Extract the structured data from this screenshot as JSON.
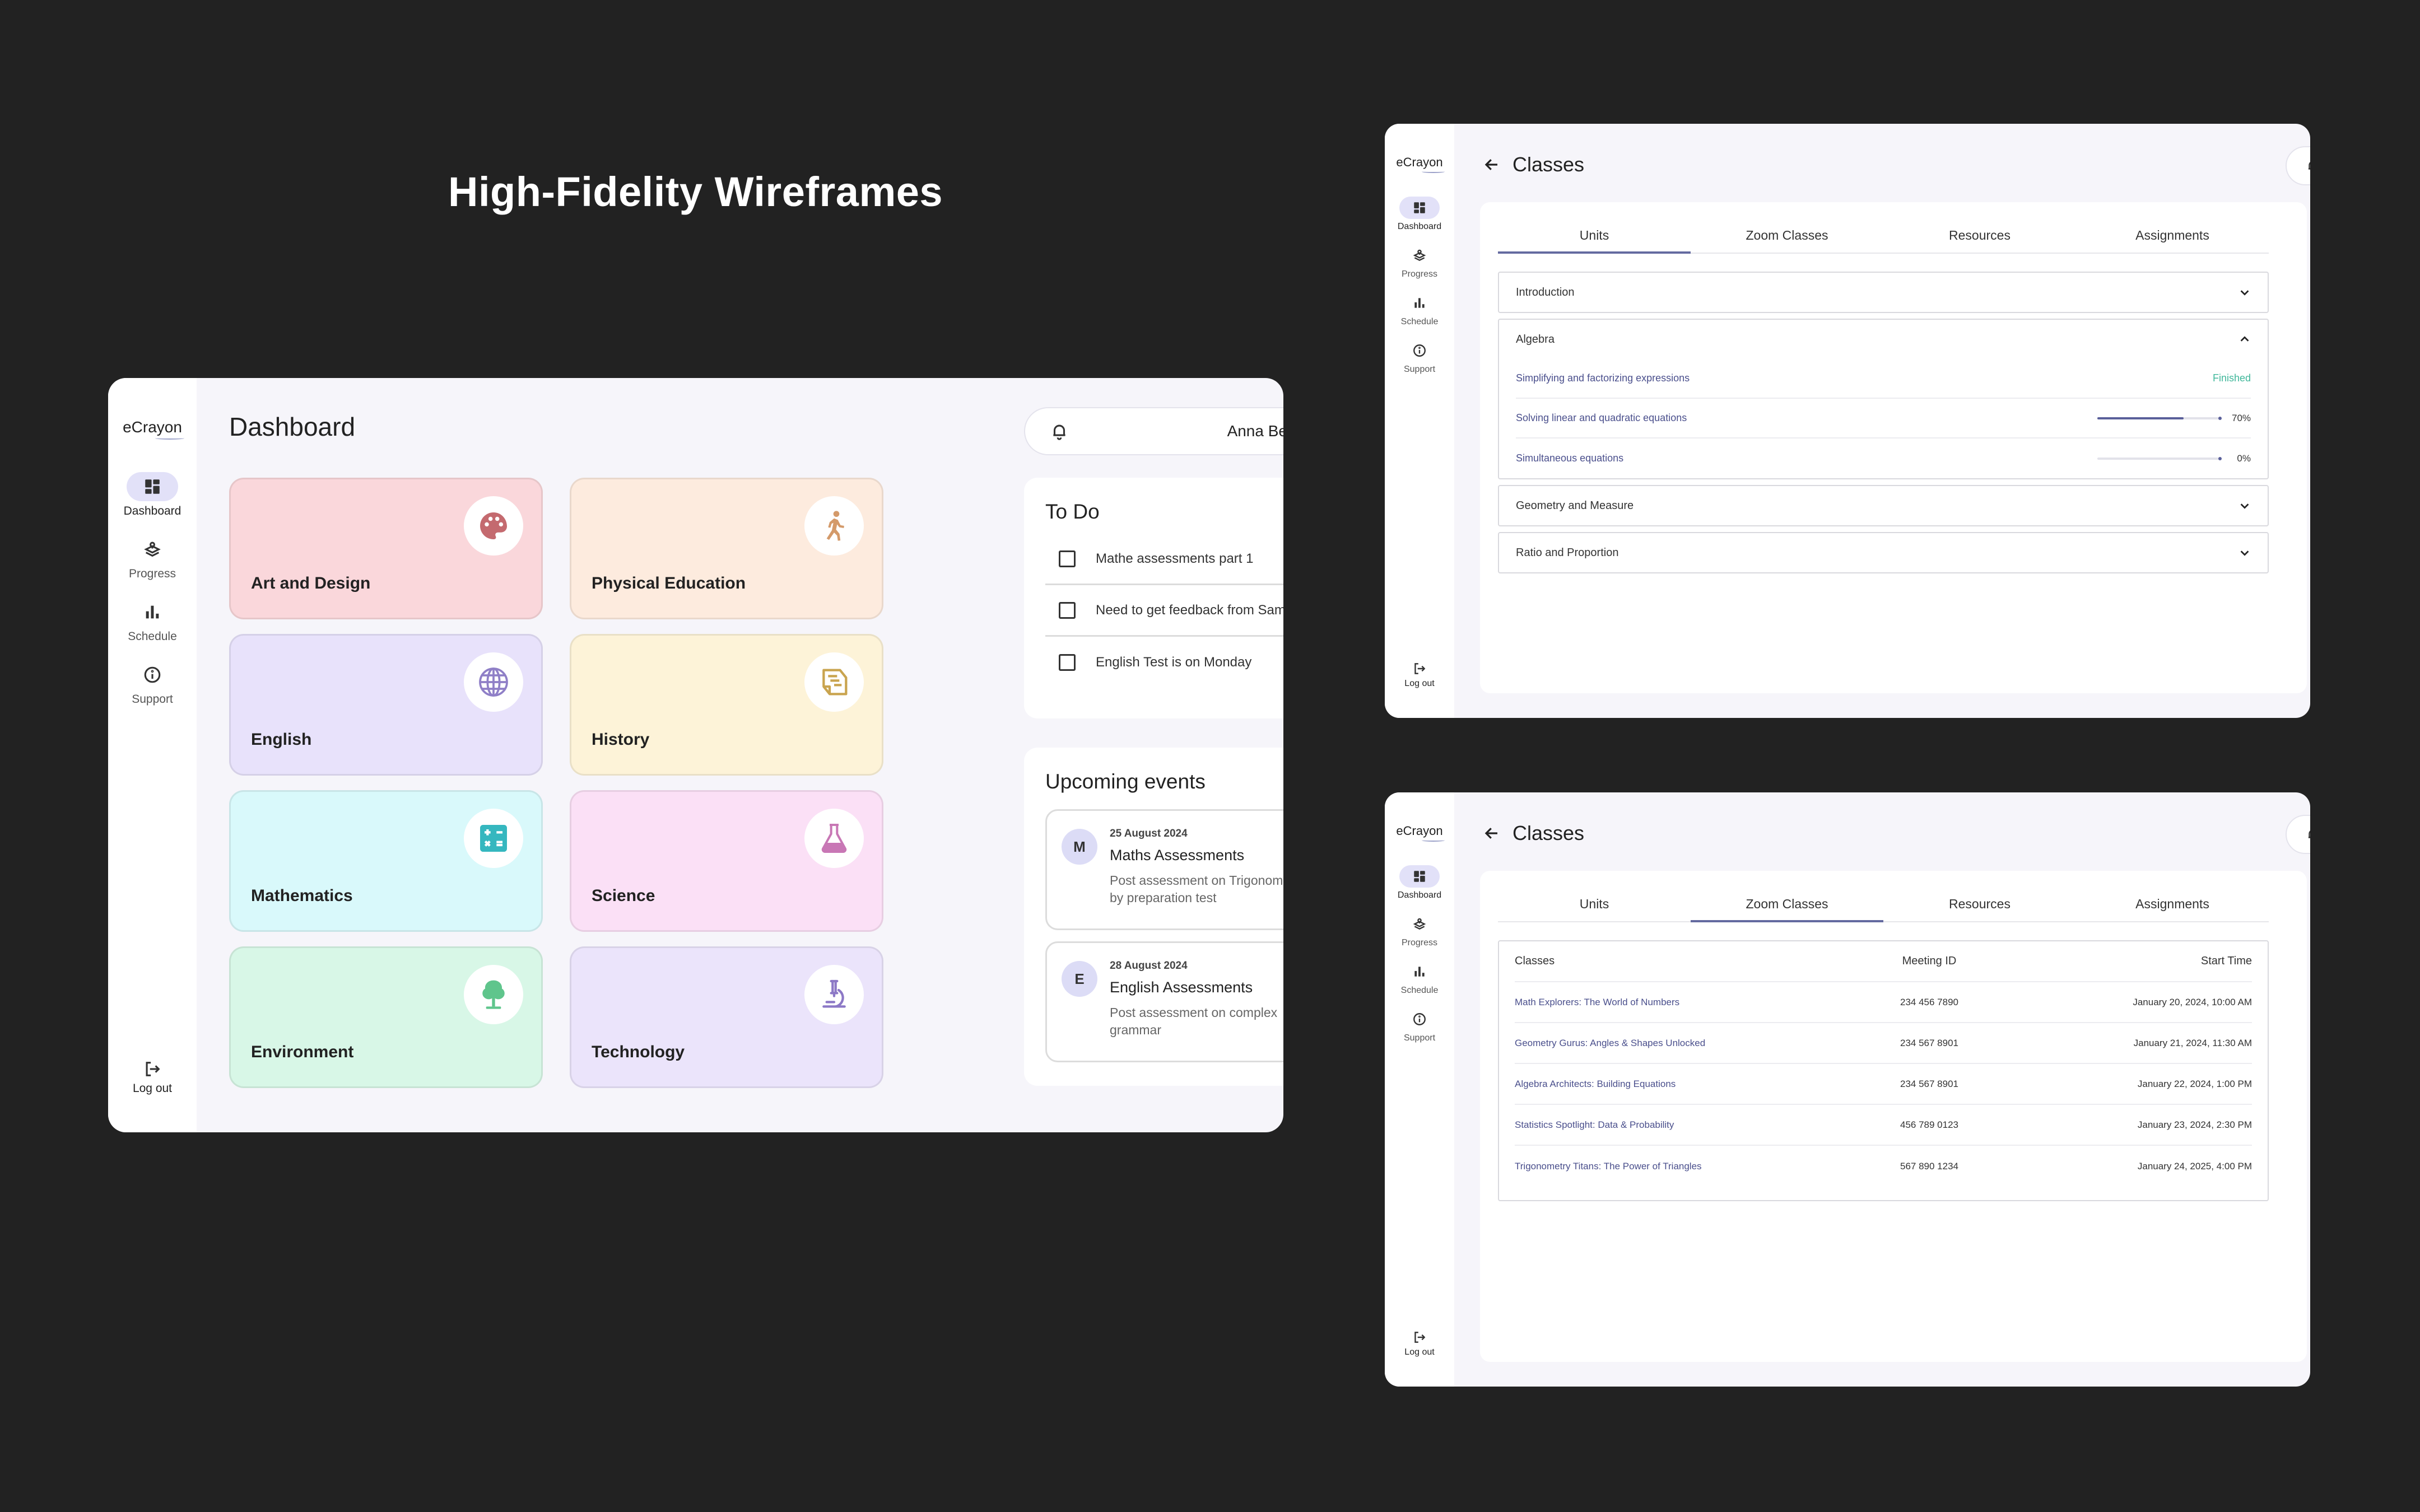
{
  "page_title": "High-Fidelity Wireframes",
  "logo": "eCrayon",
  "nav": {
    "dashboard": "Dashboard",
    "progress": "Progress",
    "schedule": "Schedule",
    "support": "Support",
    "logout": "Log out"
  },
  "user": {
    "name": "Anna Bella"
  },
  "dashboard": {
    "title": "Dashboard",
    "subjects": [
      {
        "label": "Art and Design",
        "bg": "#fad7db",
        "icon_color": "#c46a6f",
        "icon": "palette-icon"
      },
      {
        "label": "Physical Education",
        "bg": "#fdebde",
        "icon_color": "#d49a6a",
        "icon": "running-icon"
      },
      {
        "label": "English",
        "bg": "#e8e2fb",
        "icon_color": "#8f7fc7",
        "icon": "globe-icon"
      },
      {
        "label": "History",
        "bg": "#fdf3d8",
        "icon_color": "#c9a44f",
        "icon": "scroll-icon"
      },
      {
        "label": "Mathematics",
        "bg": "#d9f9fb",
        "icon_color": "#35b7bf",
        "icon": "calculator-icon"
      },
      {
        "label": "Science",
        "bg": "#fbe0f6",
        "icon_color": "#c877b5",
        "icon": "flask-icon"
      },
      {
        "label": "Environment",
        "bg": "#d8f7e7",
        "icon_color": "#5fc58c",
        "icon": "tree-icon"
      },
      {
        "label": "Technology",
        "bg": "#ebe4fb",
        "icon_color": "#8c78c6",
        "icon": "microscope-icon"
      }
    ],
    "todo": {
      "title": "To Do",
      "items": [
        "Mathe assessments part 1",
        "Need to get feedback from Sam",
        "English Test is on Monday"
      ]
    },
    "events": {
      "title": "Upcoming events",
      "items": [
        {
          "initial": "M",
          "date": "25 August 2024",
          "title": "Maths Assessments",
          "desc": "Post assessment on Trigonometry by preparation test"
        },
        {
          "initial": "E",
          "date": "28 August 2024",
          "title": "English Assessments",
          "desc": "Post assessment on complex grammar"
        }
      ]
    }
  },
  "classes": {
    "title": "Classes",
    "tabs": [
      "Units",
      "Zoom Classes",
      "Resources",
      "Assignments"
    ],
    "units": [
      {
        "title": "Introduction"
      },
      {
        "title": "Algebra",
        "rows": [
          {
            "title": "Simplifying and factorizing expressions",
            "status": "Finished"
          },
          {
            "title": "Solving linear and quadratic equations",
            "progress": 70,
            "pct": "70%"
          },
          {
            "title": "Simultaneous equations",
            "progress": 0,
            "pct": "0%"
          }
        ]
      },
      {
        "title": "Geometry and Measure"
      },
      {
        "title": "Ratio and Proportion"
      }
    ],
    "zoom_table": {
      "headers": [
        "Classes",
        "Meeting ID",
        "Start Time"
      ],
      "rows": [
        [
          "Math Explorers: The World of Numbers",
          "234 456 7890",
          "January 20, 2024, 10:00 AM"
        ],
        [
          "Geometry Gurus: Angles & Shapes Unlocked",
          "234 567 8901",
          "January 21, 2024, 11:30 AM"
        ],
        [
          "Algebra Architects: Building Equations",
          "234 567 8901",
          "January 22, 2024, 1:00 PM"
        ],
        [
          "Statistics Spotlight: Data & Probability",
          "456 789 0123",
          "January 23, 2024, 2:30 PM"
        ],
        [
          "Trigonometry Titans: The Power of Triangles",
          "567 890 1234",
          "January 24, 2025, 4:00 PM"
        ]
      ]
    }
  }
}
